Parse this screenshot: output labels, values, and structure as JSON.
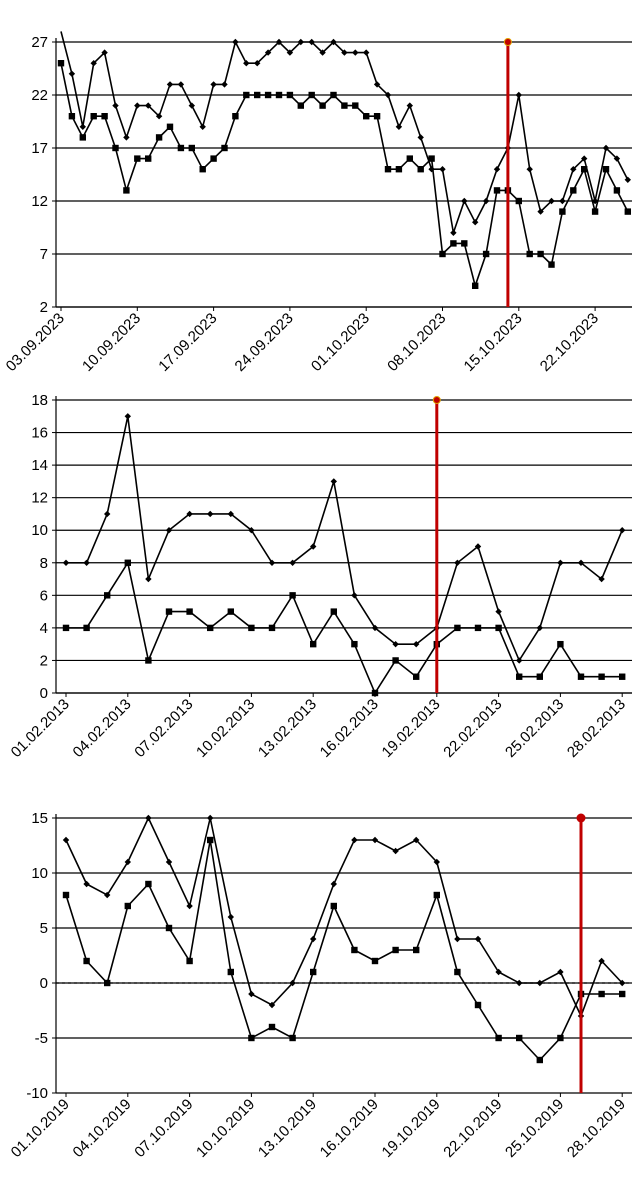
{
  "chart_data": [
    {
      "type": "line",
      "ylim": [
        2,
        27
      ],
      "yticks": [
        2,
        7,
        12,
        17,
        22,
        27
      ],
      "x_start": "03.09.2023",
      "xtick_labels": [
        "03.09.2023",
        "10.09.2023",
        "17.09.2023",
        "24.09.2023",
        "01.10.2023",
        "08.10.2023",
        "15.10.2023",
        "22.10.2023"
      ],
      "marker_date": "14.10.2023",
      "grid": "horizontal",
      "series": [
        {
          "marker": "diamond",
          "values": [
            28,
            24,
            19,
            25,
            26,
            21,
            18,
            21,
            21,
            20,
            23,
            23,
            21,
            19,
            23,
            23,
            27,
            25,
            25,
            26,
            27,
            26,
            27,
            27,
            26,
            27,
            26,
            26,
            26,
            23,
            22,
            19,
            21,
            18,
            15,
            15,
            9,
            12,
            10,
            12,
            15,
            17,
            22,
            15,
            11,
            12,
            12,
            15,
            16,
            12,
            17,
            16,
            14
          ]
        },
        {
          "marker": "square",
          "values": [
            25,
            20,
            18,
            20,
            20,
            17,
            13,
            16,
            16,
            18,
            19,
            17,
            17,
            15,
            16,
            17,
            20,
            22,
            22,
            22,
            22,
            22,
            21,
            22,
            21,
            22,
            21,
            21,
            20,
            20,
            15,
            15,
            16,
            15,
            16,
            7,
            8,
            8,
            4,
            7,
            13,
            13,
            12,
            7,
            7,
            6,
            11,
            13,
            15,
            11,
            15,
            13,
            11
          ]
        }
      ]
    },
    {
      "type": "line",
      "ylim": [
        0,
        18
      ],
      "yticks": [
        0,
        2,
        4,
        6,
        8,
        10,
        12,
        14,
        16,
        18
      ],
      "x_start": "01.02.2013",
      "xtick_labels": [
        "01.02.2013",
        "04.02.2013",
        "07.02.2013",
        "10.02.2013",
        "13.02.2013",
        "16.02.2013",
        "19.02.2013",
        "22.02.2013",
        "25.02.2013",
        "28.02.2013"
      ],
      "marker_date": "19.02.2013",
      "grid": "horizontal",
      "series": [
        {
          "marker": "diamond",
          "values": [
            8,
            8,
            11,
            17,
            7,
            10,
            11,
            11,
            11,
            10,
            8,
            8,
            9,
            13,
            6,
            4,
            3,
            3,
            4,
            8,
            9,
            5,
            2,
            4,
            8,
            8,
            7,
            10
          ]
        },
        {
          "marker": "square",
          "values": [
            4,
            4,
            6,
            8,
            2,
            5,
            5,
            4,
            5,
            4,
            4,
            6,
            3,
            5,
            3,
            0,
            2,
            1,
            3,
            4,
            4,
            4,
            1,
            1,
            3,
            1,
            1,
            1
          ]
        }
      ]
    },
    {
      "type": "line",
      "ylim": [
        -10,
        17
      ],
      "yticks": [
        -10,
        -5,
        0,
        5,
        10,
        15
      ],
      "x_start": "01.10.2019",
      "xtick_labels": [
        "01.10.2019",
        "04.10.2019",
        "07.10.2019",
        "10.10.2019",
        "13.10.2019",
        "16.10.2019",
        "19.10.2019",
        "22.10.2019",
        "25.10.2019",
        "28.10.2019"
      ],
      "marker_date": "26.10.2019",
      "grid": "horizontal",
      "series": [
        {
          "marker": "diamond",
          "values": [
            13,
            9,
            8,
            11,
            15,
            11,
            7,
            15,
            6,
            -1,
            -2,
            0,
            4,
            9,
            13,
            13,
            12,
            13,
            11,
            4,
            4,
            1,
            0,
            0,
            1,
            -3,
            2,
            0
          ]
        },
        {
          "marker": "square",
          "values": [
            8,
            2,
            0,
            7,
            9,
            5,
            2,
            13,
            1,
            -5,
            -4,
            -5,
            1,
            7,
            3,
            2,
            3,
            3,
            8,
            1,
            -2,
            -5,
            -5,
            -7,
            -5,
            -1,
            -1,
            -1
          ]
        }
      ]
    }
  ]
}
